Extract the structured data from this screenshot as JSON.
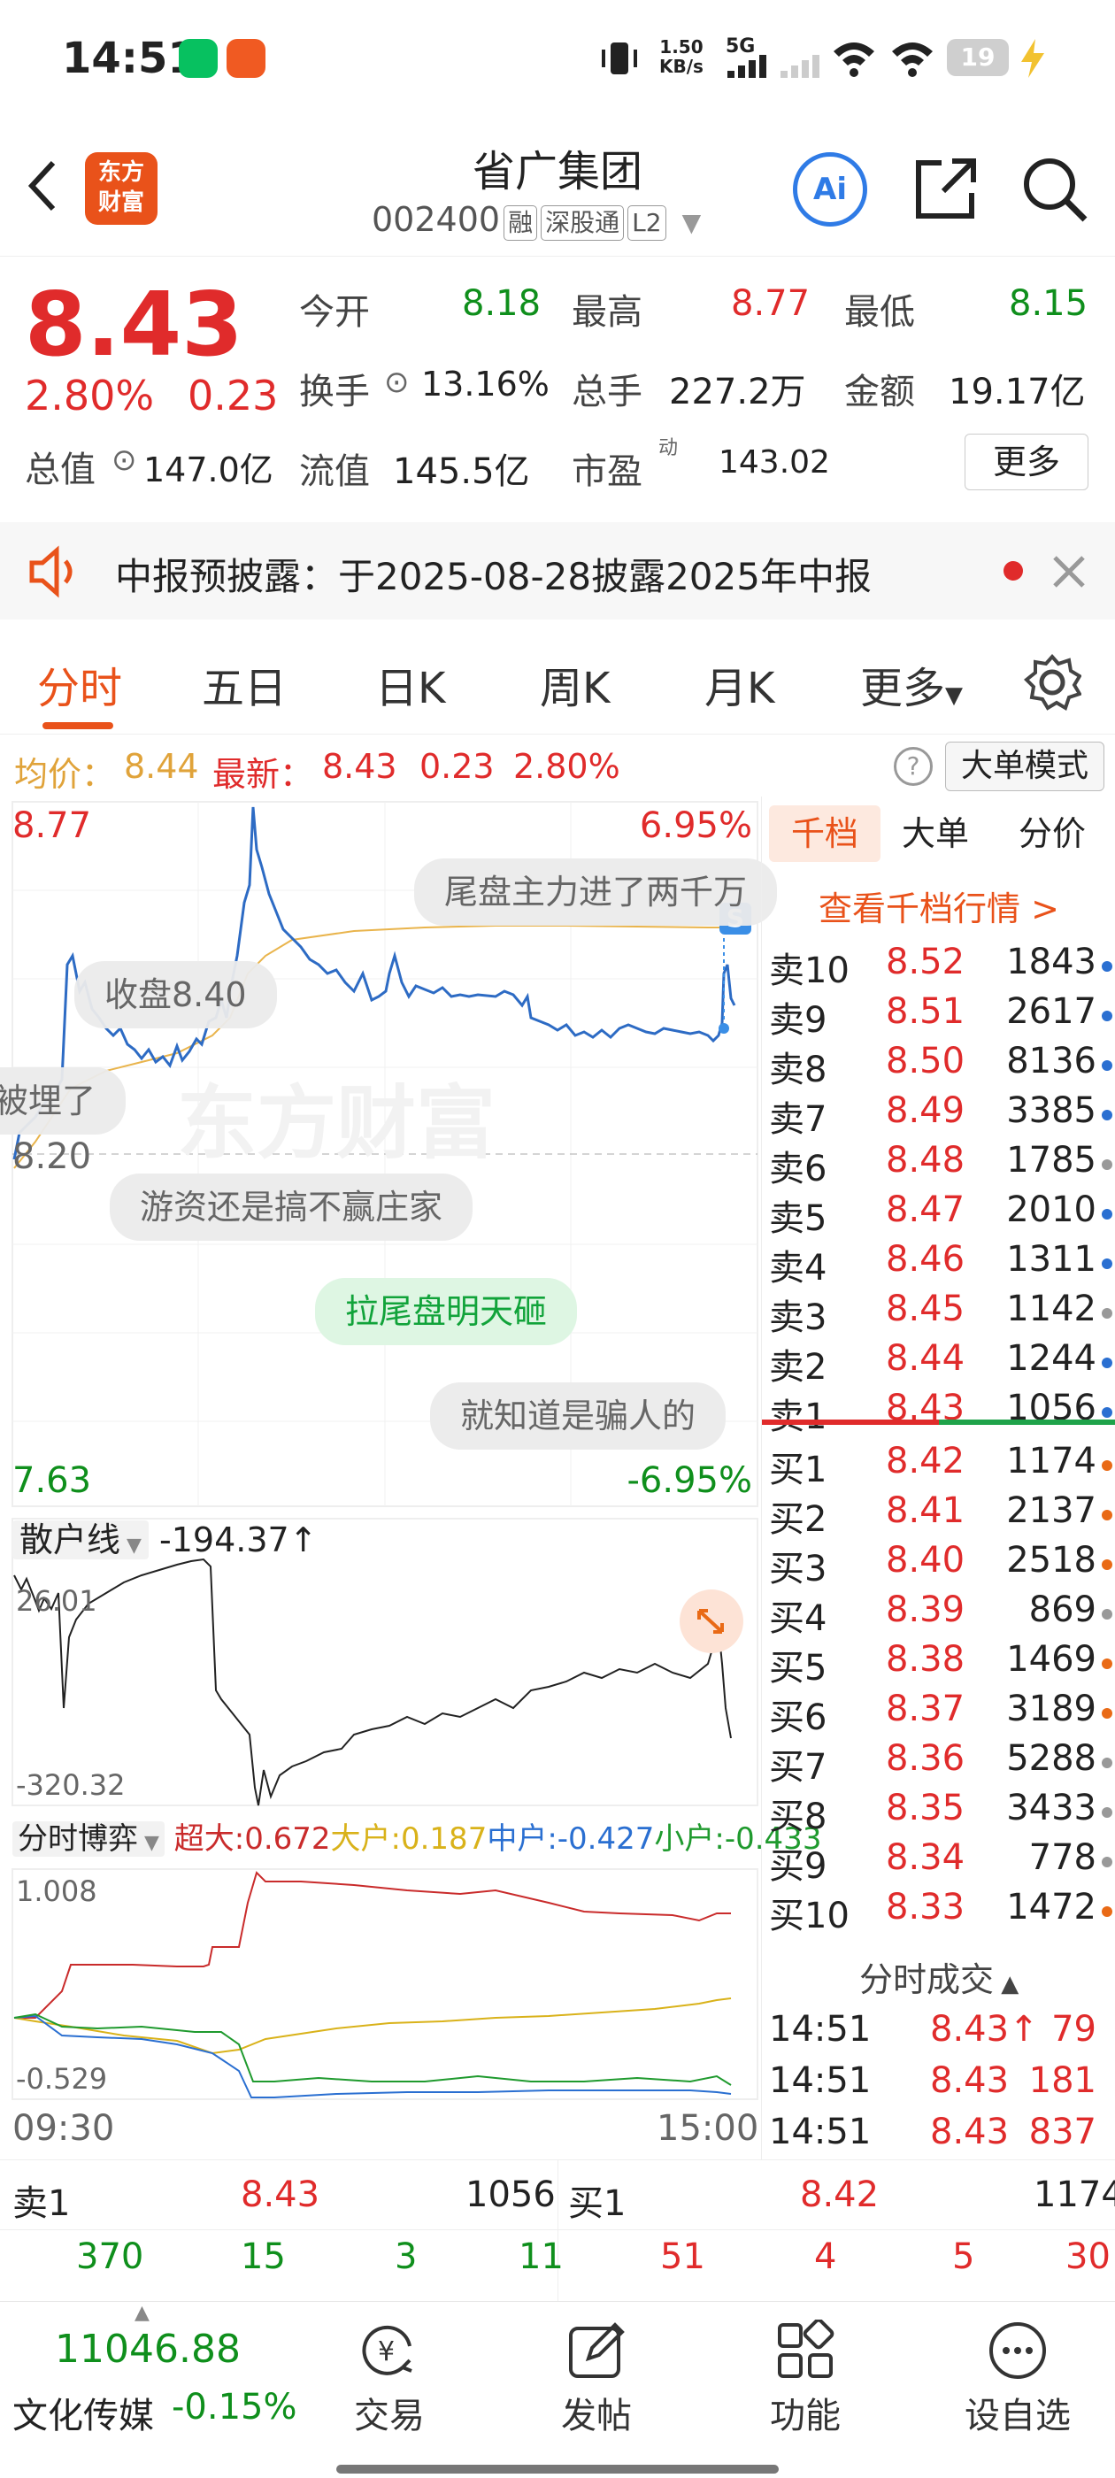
{
  "status_bar": {
    "time": "14:51",
    "net_speed_top": "1.50",
    "net_speed_bottom": "KB/s",
    "network": "5G",
    "battery": "19"
  },
  "header": {
    "logo_line1": "东方",
    "logo_line2": "财富",
    "stock_name": "省广集团",
    "stock_code": "002400",
    "tags": [
      "融",
      "深股通",
      "L2"
    ],
    "ai_label": "Ai"
  },
  "quote": {
    "price": "8.43",
    "change_pct": "2.80%",
    "change": "0.23",
    "rows": [
      [
        {
          "label": "今开",
          "value": "8.18",
          "color": "green"
        },
        {
          "label": "最高",
          "value": "8.77",
          "color": "red"
        },
        {
          "label": "最低",
          "value": "8.15",
          "color": "green"
        }
      ],
      [
        {
          "label": "换手",
          "value": "13.16%",
          "color": "dark"
        },
        {
          "label": "总手",
          "value": "227.2万",
          "color": "dark"
        },
        {
          "label": "金额",
          "value": "19.17亿",
          "color": "dark"
        }
      ],
      [
        {
          "label": "总值",
          "value": "147.0亿",
          "color": "dark"
        },
        {
          "label": "流值",
          "value": "145.5亿",
          "color": "dark"
        },
        {
          "label": "市盈",
          "value": "143.02",
          "color": "dark"
        }
      ]
    ],
    "pe_sup": "动",
    "more_label": "更多"
  },
  "notice": {
    "text": "中报预披露：于2025-08-28披露2025年中报"
  },
  "tabs": [
    "分时",
    "五日",
    "日K",
    "周K",
    "月K",
    "更多"
  ],
  "info_line": {
    "avg_label": "均价：",
    "avg_value": "8.44",
    "latest_label": "最新：",
    "latest_value": "8.43",
    "change": "0.23",
    "change_pct": "2.80%",
    "mode_button": "大单模式"
  },
  "chart_labels": {
    "high_price": "8.77",
    "high_pct": "6.95%",
    "mid_price": "8.20",
    "low_price": "7.63",
    "low_pct": "-6.95%",
    "retail_label": "散户线",
    "retail_value": "-194.37",
    "retail_arrow": "↑",
    "retail_top": "26.01",
    "retail_bottom": "-320.32",
    "game_label": "分时博弈",
    "game_super": "超大:0.672",
    "game_big": "大户:0.187",
    "game_mid": "中户:-0.427",
    "game_small": "小户:-0.433",
    "game_top": "1.008",
    "game_bottom": "-0.529",
    "time_start": "09:30",
    "time_end": "15:00",
    "s_badge": "S"
  },
  "danmu": [
    "尾盘主力进了两千万",
    "收盘8.40",
    "被埋了",
    "游资还是搞不赢庄家",
    "拉尾盘明天砸",
    "就知道是骗人的"
  ],
  "book": {
    "tabs": [
      "千档",
      "大单",
      "分价"
    ],
    "link": "查看千档行情 >",
    "asks": [
      {
        "n": "卖10",
        "p": "8.52",
        "q": "1843",
        "dot": "#2a6fd1"
      },
      {
        "n": "卖9",
        "p": "8.51",
        "q": "2617",
        "dot": "#2a6fd1"
      },
      {
        "n": "卖8",
        "p": "8.50",
        "q": "8136",
        "dot": "#2a6fd1"
      },
      {
        "n": "卖7",
        "p": "8.49",
        "q": "3385",
        "dot": "#2a6fd1"
      },
      {
        "n": "卖6",
        "p": "8.48",
        "q": "1785",
        "dot": "#999999"
      },
      {
        "n": "卖5",
        "p": "8.47",
        "q": "2010",
        "dot": "#2a6fd1"
      },
      {
        "n": "卖4",
        "p": "8.46",
        "q": "1311",
        "dot": "#2a6fd1"
      },
      {
        "n": "卖3",
        "p": "8.45",
        "q": "1142",
        "dot": "#999999"
      },
      {
        "n": "卖2",
        "p": "8.44",
        "q": "1244",
        "dot": "#2a6fd1"
      },
      {
        "n": "卖1",
        "p": "8.43",
        "q": "1056",
        "dot": "#2a6fd1"
      }
    ],
    "bids": [
      {
        "n": "买1",
        "p": "8.42",
        "q": "1174",
        "dot": "#e96a16"
      },
      {
        "n": "买2",
        "p": "8.41",
        "q": "2137",
        "dot": "#e96a16"
      },
      {
        "n": "买3",
        "p": "8.40",
        "q": "2518",
        "dot": "#e96a16"
      },
      {
        "n": "买4",
        "p": "8.39",
        "q": "869",
        "dot": "#999999"
      },
      {
        "n": "买5",
        "p": "8.38",
        "q": "1469",
        "dot": "#e96a16"
      },
      {
        "n": "买6",
        "p": "8.37",
        "q": "3189",
        "dot": "#e96a16"
      },
      {
        "n": "买7",
        "p": "8.36",
        "q": "5288",
        "dot": "#999999"
      },
      {
        "n": "买8",
        "p": "8.35",
        "q": "3433",
        "dot": "#999999"
      },
      {
        "n": "买9",
        "p": "8.34",
        "q": "778",
        "dot": "#999999"
      },
      {
        "n": "买10",
        "p": "8.33",
        "q": "1472",
        "dot": "#e96a16"
      }
    ],
    "trades_title": "分时成交",
    "trades": [
      {
        "t": "14:51",
        "p": "8.43",
        "arrow": "↑",
        "v": "79"
      },
      {
        "t": "14:51",
        "p": "8.43",
        "arrow": "",
        "v": "181"
      },
      {
        "t": "14:51",
        "p": "8.43",
        "arrow": "",
        "v": "837"
      }
    ]
  },
  "bottom": {
    "sell_label": "卖1",
    "sell_price": "8.43",
    "sell_qty": "1056",
    "buy_label": "买1",
    "buy_price": "8.42",
    "buy_qty": "1174",
    "sell_nums": [
      "370",
      "15",
      "3",
      "11"
    ],
    "buy_nums": [
      "51",
      "4",
      "5",
      "30"
    ]
  },
  "navbar": {
    "index_value": "11046.88",
    "index_name": "文化传媒",
    "index_change": "-0.15%",
    "items": [
      "交易",
      "发帖",
      "功能",
      "设自选"
    ]
  },
  "colors": {
    "red": "#e02b2b",
    "green": "#0f8f1c",
    "brand": "#e9521a",
    "avg_line": "#e9b44c",
    "price_line": "#2d6bc4"
  }
}
